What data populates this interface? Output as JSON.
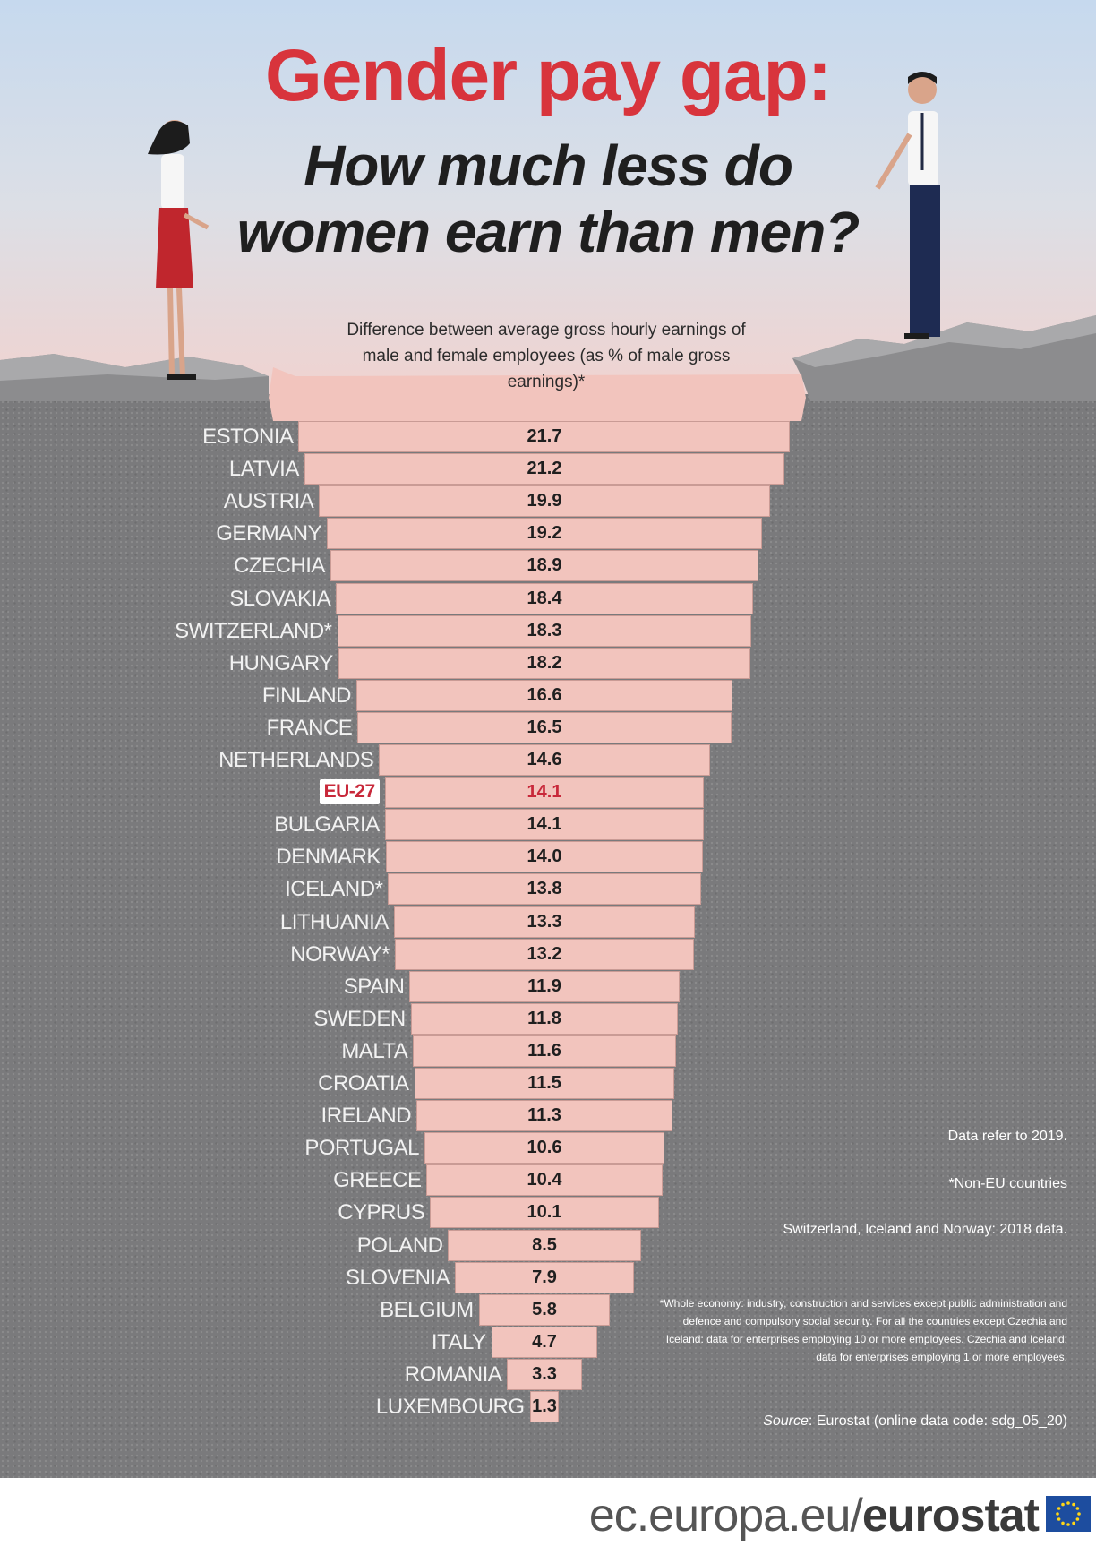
{
  "title": "Gender pay gap:",
  "subtitle_line1": "How much less do",
  "subtitle_line2": "women earn than men?",
  "description": "Difference between average gross hourly earnings of male and female employees (as % of male gross earnings)*",
  "colors": {
    "title_red": "#d8343c",
    "bar_fill": "#f2c4bd",
    "eu_highlight": "#c8283a",
    "ground": "#7a7a7c"
  },
  "chart_data": {
    "type": "bar",
    "orientation": "horizontal",
    "categories": [
      "ESTONIA",
      "LATVIA",
      "AUSTRIA",
      "GERMANY",
      "CZECHIA",
      "SLOVAKIA",
      "SWITZERLAND*",
      "HUNGARY",
      "FINLAND",
      "FRANCE",
      "NETHERLANDS",
      "EU-27",
      "BULGARIA",
      "DENMARK",
      "ICELAND*",
      "LITHUANIA",
      "NORWAY*",
      "SPAIN",
      "SWEDEN",
      "MALTA",
      "CROATIA",
      "IRELAND",
      "PORTUGAL",
      "GREECE",
      "CYPRUS",
      "POLAND",
      "SLOVENIA",
      "BELGIUM",
      "ITALY",
      "ROMANIA",
      "LUXEMBOURG"
    ],
    "values": [
      21.7,
      21.2,
      19.9,
      19.2,
      18.9,
      18.4,
      18.3,
      18.2,
      16.6,
      16.5,
      14.6,
      14.1,
      14.1,
      14.0,
      13.8,
      13.3,
      13.2,
      11.9,
      11.8,
      11.6,
      11.5,
      11.3,
      10.6,
      10.4,
      10.1,
      8.5,
      7.9,
      5.8,
      4.7,
      3.3,
      1.3
    ],
    "labels": [
      "21.7",
      "21.2",
      "19.9",
      "19.2",
      "18.9",
      "18.4",
      "18.3",
      "18.2",
      "16.6",
      "16.5",
      "14.6",
      "14.1",
      "14.1",
      "14.0",
      "13.8",
      "13.3",
      "13.2",
      "11.9",
      "11.8",
      "11.6",
      "11.5",
      "11.3",
      "10.6",
      "10.4",
      "10.1",
      "8.5",
      "7.9",
      "5.8",
      "4.7",
      "3.3",
      "1.3"
    ],
    "highlight": "EU-27"
  },
  "notes": {
    "year": "Data refer to 2019.",
    "non_eu": "*Non-EU countries",
    "older_data": "Switzerland, Iceland and Norway: 2018 data.",
    "coverage": "*Whole economy: industry, construction and services except public administration and defence and compulsory social security. For all the countries except Czechia and Iceland: data for enterprises employing 10 or more employees. Czechia and Iceland: data for enterprises employing 1 or more employees.",
    "source_label": "Source",
    "source_text": ": Eurostat (online data code: sdg_05_20)"
  },
  "footer": {
    "url_prefix": "ec.europa.eu/",
    "url_brand": "eurostat"
  }
}
